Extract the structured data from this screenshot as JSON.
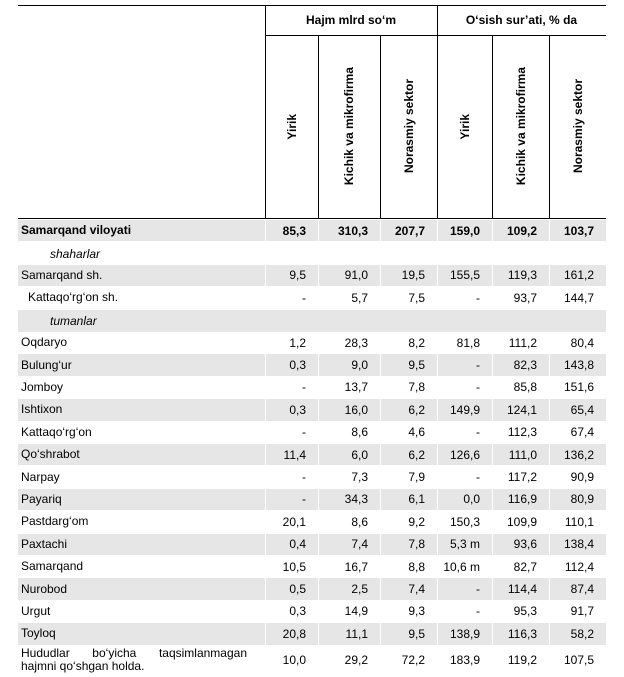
{
  "header": {
    "groups": [
      "Hajm mlrd so‘m",
      "O‘sish sur’ati, % da"
    ],
    "columns": [
      "Yirik",
      "Kichik va mikrofirma",
      "Norasmiy sektor",
      "Yirik",
      "Kichik va mikrofirma",
      "Norasmiy sektor"
    ]
  },
  "total": {
    "label": "Samarqand viloyati",
    "values": [
      "85,3",
      "310,3",
      "207,7",
      "159,0",
      "109,2",
      "103,7"
    ]
  },
  "sections": [
    {
      "title": "shaharlar",
      "rows": [
        {
          "label": "Samarqand sh.",
          "values": [
            "9,5",
            "91,0",
            "19,5",
            "155,5",
            "119,3",
            "161,2"
          ]
        },
        {
          "label": "Kattaqo‘rg‘on sh.",
          "values": [
            "-",
            "5,7",
            "7,5",
            "-",
            "93,7",
            "144,7"
          ]
        }
      ]
    },
    {
      "title": "tumanlar",
      "rows": [
        {
          "label": "Oqdaryo",
          "values": [
            "1,2",
            "28,3",
            "8,2",
            "81,8",
            "111,2",
            "80,4"
          ]
        },
        {
          "label": "Bulung‘ur",
          "values": [
            "0,3",
            "9,0",
            "9,5",
            "-",
            "82,3",
            "143,8"
          ]
        },
        {
          "label": "Jomboy",
          "values": [
            "-",
            "13,7",
            "7,8",
            "-",
            "85,8",
            "151,6"
          ]
        },
        {
          "label": "Ishtixon",
          "values": [
            "0,3",
            "16,0",
            "6,2",
            "149,9",
            "124,1",
            "65,4"
          ]
        },
        {
          "label": "Kattaqo‘rg‘on",
          "values": [
            "-",
            "8,6",
            "4,6",
            "-",
            "112,3",
            "67,4"
          ]
        },
        {
          "label": "Qo‘shrabot",
          "values": [
            "11,4",
            "6,0",
            "6,2",
            "126,6",
            "111,0",
            "136,2"
          ]
        },
        {
          "label": "Narpay",
          "values": [
            "-",
            "7,3",
            "7,9",
            "-",
            "117,2",
            "90,9"
          ]
        },
        {
          "label": "Payariq",
          "values": [
            "-",
            "34,3",
            "6,1",
            "0,0",
            "116,9",
            "80,9"
          ]
        },
        {
          "label": "Pastdarg‘om",
          "values": [
            "20,1",
            "8,6",
            "9,2",
            "150,3",
            "109,9",
            "110,1"
          ]
        },
        {
          "label": "Paxtachi",
          "values": [
            "0,4",
            "7,4",
            "7,8",
            "5,3 m",
            "93,6",
            "138,4"
          ]
        },
        {
          "label": "Samarqand",
          "values": [
            "10,5",
            "16,7",
            "8,8",
            "10,6 m",
            "82,7",
            "112,4"
          ]
        },
        {
          "label": "Nurobod",
          "values": [
            "0,5",
            "2,5",
            "7,4",
            "-",
            "114,4",
            "87,4"
          ]
        },
        {
          "label": "Urgut",
          "values": [
            "0,3",
            "14,9",
            "9,3",
            "-",
            "95,3",
            "91,7"
          ]
        },
        {
          "label": "Toyloq",
          "values": [
            "20,8",
            "11,1",
            "9,5",
            "138,9",
            "116,3",
            "58,2"
          ]
        }
      ]
    }
  ],
  "unallocated": {
    "label": "Hududlar bo‘yicha taqsimlanmagan hajmni qo‘shgan holda.",
    "values": [
      "10,0",
      "29,2",
      "72,2",
      "183,9",
      "119,2",
      "107,5"
    ]
  }
}
